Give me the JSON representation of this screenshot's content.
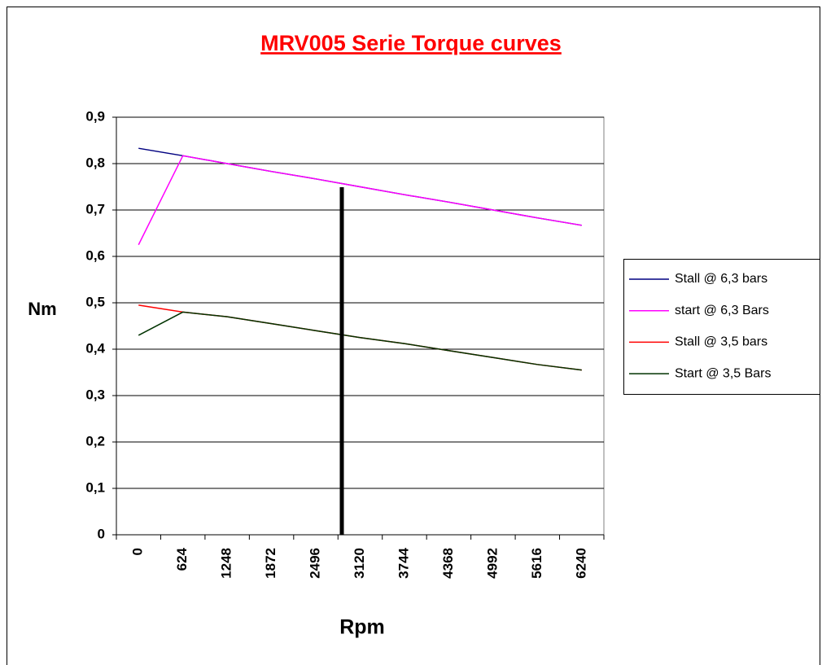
{
  "chart_data": {
    "type": "line",
    "title": "MRV005 Serie Torque curves",
    "x_label": "Rpm",
    "y_label": "Nm",
    "categories": [
      "0",
      "624",
      "1248",
      "1872",
      "2496",
      "3120",
      "3744",
      "4368",
      "4992",
      "5616",
      "6240"
    ],
    "series": [
      {
        "name": "Stall @ 6,3 bars",
        "color": "#000080",
        "values": [
          0.833,
          0.817,
          0.8,
          0.783,
          0.767,
          0.75,
          0.733,
          0.717,
          0.7,
          0.683,
          0.667
        ]
      },
      {
        "name": "start @ 6,3 Bars",
        "color": "#ff00ff",
        "values": [
          0.625,
          0.817,
          0.8,
          0.783,
          0.767,
          0.75,
          0.733,
          0.717,
          0.7,
          0.683,
          0.667
        ]
      },
      {
        "name": "Stall @ 3,5 bars",
        "color": "#ff0000",
        "values": [
          0.495,
          0.48,
          0.47,
          0.455,
          0.44,
          0.425,
          0.412,
          0.397,
          0.382,
          0.367,
          0.355
        ]
      },
      {
        "name": "Start @ 3,5 Bars",
        "color": "#003300",
        "values": [
          0.43,
          0.48,
          0.47,
          0.455,
          0.44,
          0.425,
          0.412,
          0.397,
          0.382,
          0.367,
          0.355
        ]
      }
    ],
    "ylim": [
      0,
      0.9
    ],
    "yticks": [
      0,
      {
        "value": 0.1,
        "label": "0,1"
      },
      {
        "value": 0.2,
        "label": "0,2"
      },
      {
        "value": 0.3,
        "label": "0,3"
      },
      {
        "value": 0.4,
        "label": "0,4"
      },
      {
        "value": 0.5,
        "label": "0,5"
      },
      {
        "value": 0.6,
        "label": "0,6"
      },
      {
        "value": 0.7,
        "label": "0,7"
      },
      {
        "value": 0.8,
        "label": "0,8"
      },
      {
        "value": 0.9,
        "label": "0,9"
      }
    ],
    "grid": true,
    "legend": "right"
  }
}
